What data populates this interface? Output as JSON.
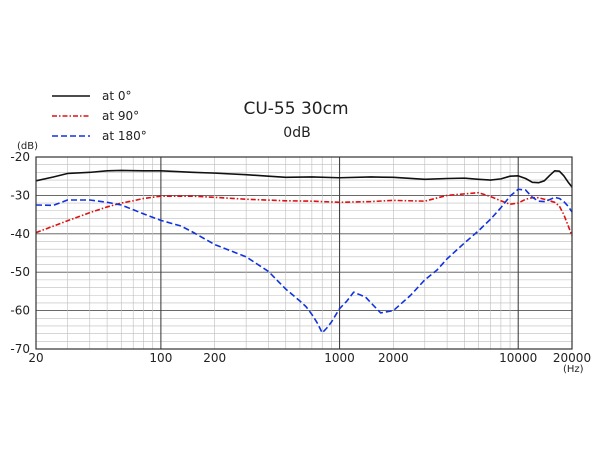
{
  "chart_data": {
    "type": "line",
    "title": "CU-55 30cm",
    "subtitle": "0dB",
    "ylabel": "(dB)",
    "xlabel": "(Hz)",
    "x_scale": "log",
    "xlim": [
      20,
      20000
    ],
    "ylim": [
      -70,
      -20
    ],
    "grid": true,
    "legend_position": "top-left",
    "x_ticks": [
      {
        "value": 20,
        "label": "20"
      },
      {
        "value": 100,
        "label": "100"
      },
      {
        "value": 200,
        "label": "200"
      },
      {
        "value": 1000,
        "label": "1000"
      },
      {
        "value": 2000,
        "label": "2000"
      },
      {
        "value": 10000,
        "label": "10000"
      },
      {
        "value": 20000,
        "label": "20000"
      }
    ],
    "y_ticks": [
      {
        "value": -20,
        "label": "-20"
      },
      {
        "value": -30,
        "label": "-30"
      },
      {
        "value": -40,
        "label": "-40"
      },
      {
        "value": -50,
        "label": "-50"
      },
      {
        "value": -60,
        "label": "-60"
      },
      {
        "value": -70,
        "label": "-70"
      }
    ],
    "series": [
      {
        "name": "at 0°",
        "color": "#111111",
        "dash": "solid",
        "points": [
          [
            20,
            -26.2
          ],
          [
            25,
            -25.2
          ],
          [
            30,
            -24.3
          ],
          [
            40,
            -24
          ],
          [
            50,
            -23.6
          ],
          [
            60,
            -23.5
          ],
          [
            80,
            -23.6
          ],
          [
            100,
            -23.6
          ],
          [
            150,
            -24
          ],
          [
            200,
            -24.2
          ],
          [
            300,
            -24.6
          ],
          [
            400,
            -25
          ],
          [
            500,
            -25.3
          ],
          [
            700,
            -25.2
          ],
          [
            1000,
            -25.4
          ],
          [
            1500,
            -25.2
          ],
          [
            2000,
            -25.3
          ],
          [
            3000,
            -25.8
          ],
          [
            4000,
            -25.6
          ],
          [
            5000,
            -25.5
          ],
          [
            6000,
            -25.8
          ],
          [
            7000,
            -26
          ],
          [
            8000,
            -25.7
          ],
          [
            9000,
            -25
          ],
          [
            10000,
            -24.9
          ],
          [
            11000,
            -25.6
          ],
          [
            12000,
            -26.6
          ],
          [
            13000,
            -26.7
          ],
          [
            14000,
            -26.2
          ],
          [
            15000,
            -24.8
          ],
          [
            16000,
            -23.6
          ],
          [
            17000,
            -23.7
          ],
          [
            18000,
            -24.9
          ],
          [
            19000,
            -26.5
          ],
          [
            20000,
            -27.8
          ]
        ]
      },
      {
        "name": "at 90°",
        "color": "#dd1111",
        "dash": "dash-dot",
        "points": [
          [
            20,
            -39.7
          ],
          [
            25,
            -38
          ],
          [
            30,
            -36.6
          ],
          [
            40,
            -34.5
          ],
          [
            50,
            -33
          ],
          [
            60,
            -32
          ],
          [
            70,
            -31.4
          ],
          [
            80,
            -30.8
          ],
          [
            100,
            -30.2
          ],
          [
            150,
            -30.2
          ],
          [
            200,
            -30.5
          ],
          [
            300,
            -31
          ],
          [
            500,
            -31.4
          ],
          [
            700,
            -31.5
          ],
          [
            1000,
            -31.8
          ],
          [
            1500,
            -31.6
          ],
          [
            2000,
            -31.3
          ],
          [
            3000,
            -31.5
          ],
          [
            4000,
            -30
          ],
          [
            5000,
            -29.6
          ],
          [
            6000,
            -29.3
          ],
          [
            7000,
            -30.3
          ],
          [
            8000,
            -31.4
          ],
          [
            9000,
            -32.3
          ],
          [
            10000,
            -32
          ],
          [
            11000,
            -31
          ],
          [
            12000,
            -30.6
          ],
          [
            13000,
            -30.6
          ],
          [
            14000,
            -31
          ],
          [
            15000,
            -31.4
          ],
          [
            16000,
            -31.8
          ],
          [
            17000,
            -32.8
          ],
          [
            18000,
            -35
          ],
          [
            19000,
            -37.8
          ],
          [
            20000,
            -40.5
          ]
        ]
      },
      {
        "name": "at 180°",
        "color": "#1133dd",
        "dash": "dashed",
        "points": [
          [
            20,
            -32.5
          ],
          [
            25,
            -32.6
          ],
          [
            30,
            -31.2
          ],
          [
            40,
            -31.2
          ],
          [
            50,
            -31.8
          ],
          [
            60,
            -32.5
          ],
          [
            80,
            -34.8
          ],
          [
            100,
            -36.5
          ],
          [
            130,
            -38
          ],
          [
            150,
            -39.5
          ],
          [
            200,
            -42.8
          ],
          [
            300,
            -46
          ],
          [
            400,
            -49.8
          ],
          [
            500,
            -54.4
          ],
          [
            600,
            -57.5
          ],
          [
            650,
            -59
          ],
          [
            700,
            -61
          ],
          [
            750,
            -63.2
          ],
          [
            800,
            -65.8
          ],
          [
            850,
            -64.5
          ],
          [
            900,
            -63
          ],
          [
            1000,
            -59.5
          ],
          [
            1100,
            -57.5
          ],
          [
            1200,
            -55.2
          ],
          [
            1400,
            -56.5
          ],
          [
            1500,
            -58
          ],
          [
            1700,
            -60.6
          ],
          [
            2000,
            -60
          ],
          [
            2500,
            -56
          ],
          [
            3000,
            -52
          ],
          [
            3500,
            -49.5
          ],
          [
            4000,
            -46.5
          ],
          [
            5000,
            -42.4
          ],
          [
            6000,
            -39.2
          ],
          [
            7000,
            -36.2
          ],
          [
            8000,
            -33.2
          ],
          [
            9000,
            -30.2
          ],
          [
            10000,
            -28.4
          ],
          [
            11000,
            -28.6
          ],
          [
            12000,
            -30.5
          ],
          [
            13000,
            -31.5
          ],
          [
            14000,
            -31.6
          ],
          [
            15000,
            -31.1
          ],
          [
            16000,
            -30.5
          ],
          [
            17000,
            -30.8
          ],
          [
            18000,
            -31.6
          ],
          [
            19000,
            -32.8
          ],
          [
            20000,
            -34.3
          ]
        ]
      }
    ]
  }
}
